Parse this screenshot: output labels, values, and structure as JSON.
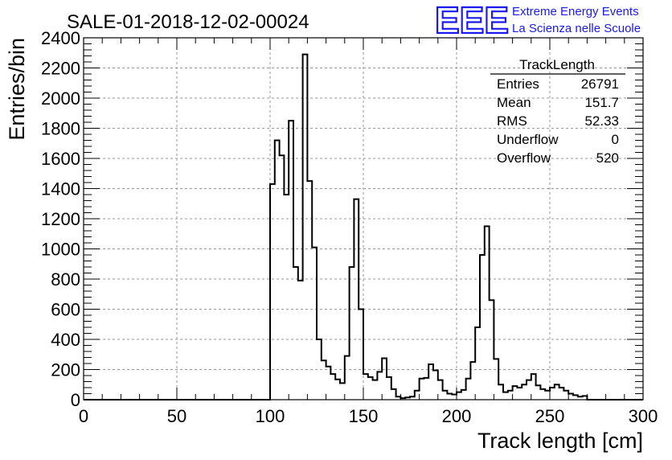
{
  "header": {
    "run_title": "SALE-01-2018-12-02-00024",
    "logo_text": "EEE",
    "logo_line1": "Extreme Energy Events",
    "logo_line2": "La Scienza nelle Scuole"
  },
  "stats_box": {
    "name": "TrackLength",
    "rows": [
      {
        "label": "Entries",
        "value": "26791"
      },
      {
        "label": "Mean",
        "value": "151.7"
      },
      {
        "label": "RMS",
        "value": "52.33"
      },
      {
        "label": "Underflow",
        "value": "0"
      },
      {
        "label": "Overflow",
        "value": "520"
      }
    ]
  },
  "colors": {
    "logo": "#1a1af0",
    "line": "#000000",
    "grid": "#999999"
  },
  "chart_data": {
    "type": "histogram",
    "xlabel": "Track length [cm]",
    "ylabel": "Entries/bin",
    "xlim": [
      0,
      300
    ],
    "ylim": [
      0,
      2400
    ],
    "bin_width": 2.5,
    "grid": true,
    "x_ticks": [
      0,
      50,
      100,
      150,
      200,
      250,
      300
    ],
    "y_ticks": [
      0,
      200,
      400,
      600,
      800,
      1000,
      1200,
      1400,
      1600,
      1800,
      2000,
      2200,
      2400
    ],
    "bin_edges_start": 100,
    "values": [
      1430,
      1720,
      1620,
      1360,
      1850,
      880,
      790,
      2290,
      1450,
      1010,
      400,
      260,
      220,
      170,
      135,
      110,
      290,
      880,
      1330,
      600,
      170,
      150,
      130,
      185,
      275,
      150,
      70,
      20,
      10,
      15,
      20,
      60,
      140,
      145,
      235,
      195,
      130,
      60,
      40,
      35,
      50,
      65,
      140,
      250,
      480,
      960,
      1150,
      660,
      270,
      100,
      50,
      60,
      90,
      80,
      100,
      130,
      170,
      95,
      70,
      60,
      80,
      100,
      80,
      60,
      40,
      30,
      20,
      25
    ]
  }
}
